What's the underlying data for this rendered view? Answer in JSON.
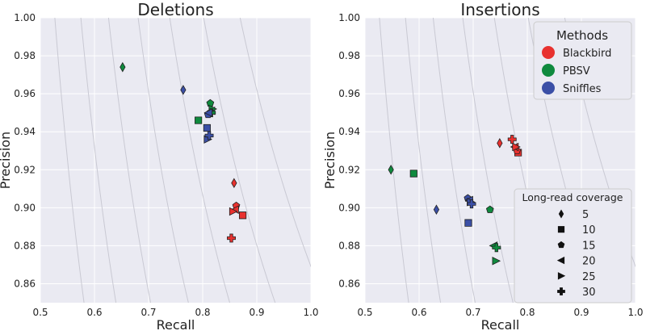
{
  "chart_data": [
    {
      "type": "scatter",
      "title": "Deletions",
      "xlabel": "Recall",
      "ylabel": "Precision",
      "xlim": [
        0.5,
        1.0
      ],
      "ylim": [
        0.85,
        1.0
      ],
      "xticks": [
        "0.5",
        "0.6",
        "0.7",
        "0.8",
        "0.9",
        "1.0"
      ],
      "yticks": [
        "0.86",
        "0.88",
        "0.90",
        "0.92",
        "0.94",
        "0.96",
        "0.98",
        "1.00"
      ],
      "grid": true,
      "series": [
        {
          "name": "Blackbird",
          "points": [
            {
              "x": 0.858,
              "y": 0.913,
              "marker": "diamond",
              "coverage": "5"
            },
            {
              "x": 0.874,
              "y": 0.896,
              "marker": "square",
              "coverage": "10"
            },
            {
              "x": 0.862,
              "y": 0.901,
              "marker": "pentagon",
              "coverage": "15"
            },
            {
              "x": 0.86,
              "y": 0.899,
              "marker": "triangle-left",
              "coverage": "20"
            },
            {
              "x": 0.856,
              "y": 0.898,
              "marker": "triangle-right",
              "coverage": "25"
            },
            {
              "x": 0.853,
              "y": 0.884,
              "marker": "plus",
              "coverage": "30"
            }
          ]
        },
        {
          "name": "PBSV",
          "points": [
            {
              "x": 0.652,
              "y": 0.974,
              "marker": "diamond",
              "coverage": "5"
            },
            {
              "x": 0.792,
              "y": 0.946,
              "marker": "square",
              "coverage": "10"
            },
            {
              "x": 0.814,
              "y": 0.955,
              "marker": "pentagon",
              "coverage": "15"
            },
            {
              "x": 0.816,
              "y": 0.951,
              "marker": "triangle-left",
              "coverage": "20"
            },
            {
              "x": 0.818,
              "y": 0.952,
              "marker": "triangle-right",
              "coverage": "25"
            },
            {
              "x": 0.816,
              "y": 0.95,
              "marker": "plus",
              "coverage": "30"
            }
          ]
        },
        {
          "name": "Sniffles",
          "points": [
            {
              "x": 0.764,
              "y": 0.962,
              "marker": "diamond",
              "coverage": "5"
            },
            {
              "x": 0.808,
              "y": 0.942,
              "marker": "square",
              "coverage": "10"
            },
            {
              "x": 0.81,
              "y": 0.949,
              "marker": "pentagon",
              "coverage": "15"
            },
            {
              "x": 0.811,
              "y": 0.95,
              "marker": "triangle-left",
              "coverage": "20"
            },
            {
              "x": 0.809,
              "y": 0.936,
              "marker": "triangle-right",
              "coverage": "25"
            },
            {
              "x": 0.812,
              "y": 0.938,
              "marker": "plus",
              "coverage": "30"
            }
          ]
        }
      ]
    },
    {
      "type": "scatter",
      "title": "Insertions",
      "xlabel": "Recall",
      "ylabel": "Precision",
      "xlim": [
        0.5,
        1.0
      ],
      "ylim": [
        0.85,
        1.0
      ],
      "xticks": [
        "0.5",
        "0.6",
        "0.7",
        "0.8",
        "0.9",
        "1.0"
      ],
      "yticks": [
        "0.86",
        "0.88",
        "0.90",
        "0.92",
        "0.94",
        "0.96",
        "0.98",
        "1.00"
      ],
      "grid": true,
      "series": [
        {
          "name": "Blackbird",
          "points": [
            {
              "x": 0.749,
              "y": 0.934,
              "marker": "diamond",
              "coverage": "5"
            },
            {
              "x": 0.783,
              "y": 0.929,
              "marker": "square",
              "coverage": "10"
            },
            {
              "x": 0.781,
              "y": 0.93,
              "marker": "pentagon",
              "coverage": "15"
            },
            {
              "x": 0.777,
              "y": 0.932,
              "marker": "triangle-left",
              "coverage": "20"
            },
            {
              "x": 0.779,
              "y": 0.932,
              "marker": "triangle-right",
              "coverage": "25"
            },
            {
              "x": 0.772,
              "y": 0.936,
              "marker": "plus",
              "coverage": "30"
            }
          ]
        },
        {
          "name": "PBSV",
          "points": [
            {
              "x": 0.548,
              "y": 0.92,
              "marker": "diamond",
              "coverage": "5"
            },
            {
              "x": 0.59,
              "y": 0.918,
              "marker": "square",
              "coverage": "10"
            },
            {
              "x": 0.731,
              "y": 0.899,
              "marker": "pentagon",
              "coverage": "15"
            },
            {
              "x": 0.738,
              "y": 0.88,
              "marker": "triangle-left",
              "coverage": "20"
            },
            {
              "x": 0.742,
              "y": 0.872,
              "marker": "triangle-right",
              "coverage": "25"
            },
            {
              "x": 0.743,
              "y": 0.879,
              "marker": "plus",
              "coverage": "30"
            }
          ]
        },
        {
          "name": "Sniffles",
          "points": [
            {
              "x": 0.632,
              "y": 0.899,
              "marker": "diamond",
              "coverage": "5"
            },
            {
              "x": 0.691,
              "y": 0.892,
              "marker": "square",
              "coverage": "10"
            },
            {
              "x": 0.69,
              "y": 0.905,
              "marker": "pentagon",
              "coverage": "15"
            },
            {
              "x": 0.693,
              "y": 0.904,
              "marker": "triangle-left",
              "coverage": "20"
            },
            {
              "x": 0.695,
              "y": 0.903,
              "marker": "triangle-right",
              "coverage": "25"
            },
            {
              "x": 0.697,
              "y": 0.902,
              "marker": "plus",
              "coverage": "30"
            }
          ]
        }
      ]
    }
  ],
  "legend_methods": {
    "title": "Methods",
    "placement": "top-right of Insertions panel",
    "items": [
      {
        "name": "Blackbird",
        "color": "#E8312F"
      },
      {
        "name": "PBSV",
        "color": "#0F8A3E"
      },
      {
        "name": "Sniffles",
        "color": "#3B4FA6"
      }
    ]
  },
  "legend_coverage": {
    "title": "Long-read coverage",
    "placement": "bottom-right of Insertions panel",
    "items": [
      {
        "label": "5",
        "marker": "diamond"
      },
      {
        "label": "10",
        "marker": "square"
      },
      {
        "label": "15",
        "marker": "pentagon"
      },
      {
        "label": "20",
        "marker": "triangle-left"
      },
      {
        "label": "25",
        "marker": "triangle-right"
      },
      {
        "label": "30",
        "marker": "plus"
      }
    ]
  },
  "colors": {
    "plot_background": "#EAEAF2",
    "grid": "#FFFFFF",
    "f_curve": "#C9C9D3",
    "marker_edge": "#222222"
  }
}
